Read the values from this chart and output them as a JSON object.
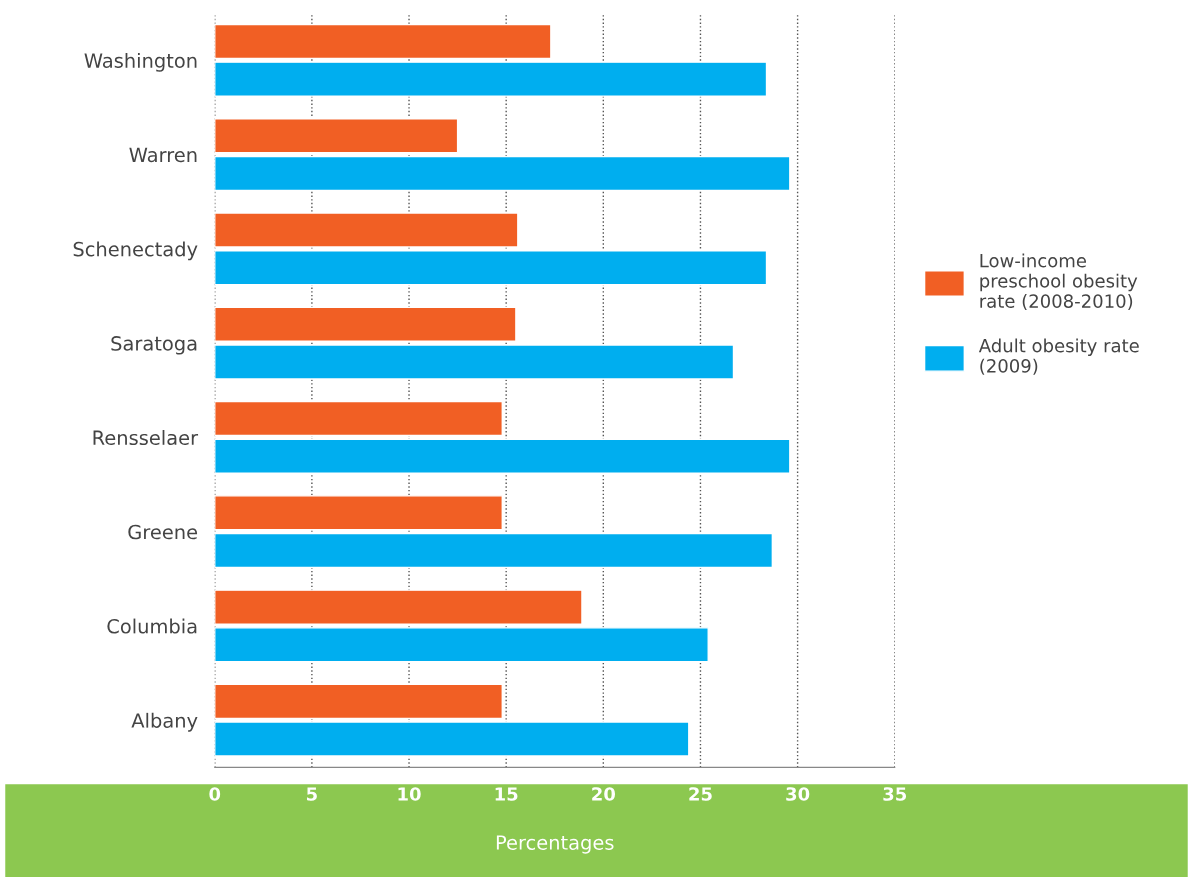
{
  "chart_data": {
    "type": "bar",
    "orientation": "horizontal",
    "xlabel": "Percentages",
    "categories": [
      "Washington",
      "Warren",
      "Schenectady",
      "Saratoga",
      "Rensselaer",
      "Greene",
      "Columbia",
      "Albany"
    ],
    "series": [
      {
        "name": "Low-income preschool obesity rate (2008-2010)",
        "color": "#f15f24",
        "values": [
          17.3,
          12.5,
          15.6,
          15.5,
          14.8,
          14.8,
          18.9,
          14.8
        ]
      },
      {
        "name": "Adult obesity rate (2009)",
        "color": "#00aeef",
        "values": [
          28.4,
          29.6,
          28.4,
          26.7,
          29.6,
          28.7,
          25.4,
          24.4
        ]
      }
    ],
    "xlim": [
      0,
      35
    ],
    "xticks": [
      0,
      5,
      10,
      15,
      20,
      25,
      30,
      35
    ],
    "grid": "x",
    "legend": "right"
  }
}
